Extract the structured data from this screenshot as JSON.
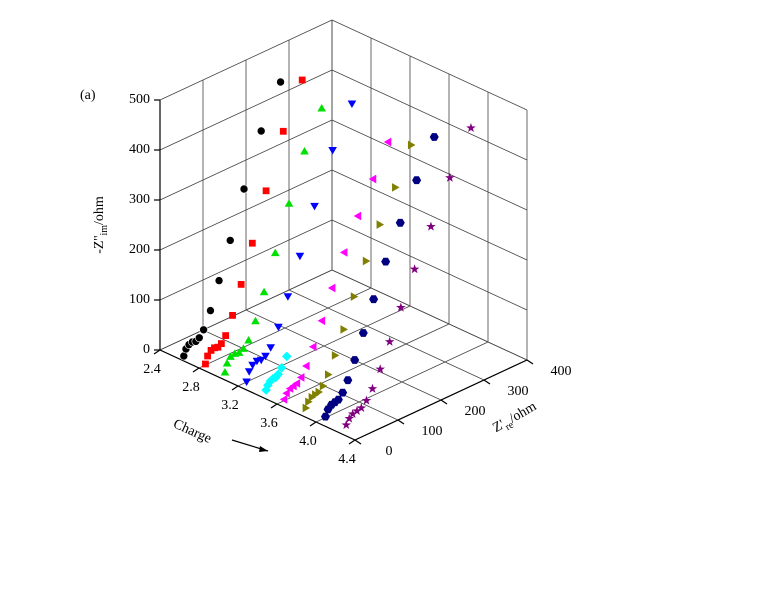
{
  "chart_data": {
    "type": "scatter3d",
    "annotation": "(a)",
    "xlabel": {
      "main": "Z'",
      "sub": "re",
      "unit": "/ohm"
    },
    "ylabel": {
      "main": "-Z''",
      "sub": "im",
      "unit": "/ohm"
    },
    "zlabel": "Charge",
    "xlim": [
      0,
      400
    ],
    "xticks": [
      0,
      100,
      200,
      300,
      400
    ],
    "ylim": [
      0,
      500
    ],
    "yticks": [
      0,
      100,
      200,
      300,
      400,
      500
    ],
    "zlim": [
      2.4,
      4.4
    ],
    "zticks": [
      2.4,
      2.8,
      3.2,
      3.6,
      {
        "value": 4,
        "label": "4.0"
      },
      4.4
    ],
    "grid": true,
    "series": [
      {
        "charge": 2.6,
        "color": "#000000",
        "marker": "circle",
        "x": [
          10,
          15,
          22,
          30,
          38,
          46,
          56,
          72,
          92,
          118,
          150,
          190,
          235
        ],
        "y": [
          2,
          14,
          20,
          22,
          20,
          24,
          36,
          68,
          120,
          190,
          280,
          380,
          460
        ]
      },
      {
        "charge": 2.8,
        "color": "#ff0000",
        "marker": "square",
        "x": [
          15,
          20,
          28,
          36,
          44,
          52,
          62,
          78,
          98,
          124,
          156,
          196,
          240
        ],
        "y": [
          2,
          16,
          24,
          26,
          24,
          28,
          40,
          74,
          128,
          200,
          292,
          395,
          480
        ]
      },
      {
        "charge": 3.0,
        "color": "#00e000",
        "marker": "triangle-up",
        "x": [
          15,
          20,
          28,
          38,
          48,
          58,
          70,
          86,
          106,
          132,
          164,
          200,
          240
        ],
        "y": [
          2,
          18,
          28,
          30,
          28,
          32,
          44,
          76,
          126,
          194,
          280,
          370,
          440
        ]
      },
      {
        "charge": 3.2,
        "color": "#0000ff",
        "marker": "triangle-down",
        "x": [
          20,
          26,
          34,
          44,
          54,
          64,
          76,
          94,
          116,
          144,
          178,
          220,
          265
        ],
        "y": [
          2,
          20,
          30,
          34,
          32,
          36,
          48,
          82,
          134,
          204,
          290,
          385,
          460
        ]
      },
      {
        "charge": 3.4,
        "color": "#00ffff",
        "marker": "diamond",
        "x": [
          20,
          24,
          30,
          36,
          42,
          48,
          56,
          68
        ],
        "y": [
          2,
          10,
          16,
          18,
          18,
          22,
          32,
          50
        ]
      },
      {
        "charge": 3.6,
        "color": "#ff00ff",
        "marker": "triangle-left",
        "x": [
          18,
          24,
          32,
          40,
          48,
          58,
          70,
          86,
          106,
          130,
          158,
          190,
          225,
          260
        ],
        "y": [
          2,
          12,
          18,
          20,
          22,
          30,
          48,
          80,
          124,
          180,
          240,
          300,
          360,
          420
        ]
      },
      {
        "charge": 3.8,
        "color": "#808000",
        "marker": "triangle-right",
        "x": [
          20,
          26,
          34,
          42,
          50,
          60,
          72,
          88,
          108,
          132,
          160,
          192,
          228,
          265
        ],
        "y": [
          2,
          12,
          18,
          20,
          22,
          30,
          48,
          80,
          124,
          180,
          240,
          300,
          360,
          430
        ]
      },
      {
        "charge": 4.0,
        "color": "#000080",
        "marker": "hexagon",
        "x": [
          22,
          28,
          36,
          44,
          52,
          62,
          74,
          90,
          110,
          134,
          162,
          196,
          234,
          275
        ],
        "y": [
          2,
          14,
          20,
          22,
          24,
          34,
          54,
          88,
          134,
          192,
          256,
          320,
          390,
          460
        ]
      },
      {
        "charge": 4.2,
        "color": "#800080",
        "marker": "star",
        "x": [
          25,
          32,
          40,
          50,
          60,
          72,
          86,
          104,
          126,
          152,
          184,
          222,
          266,
          315
        ],
        "y": [
          2,
          12,
          18,
          20,
          22,
          32,
          50,
          82,
          128,
          186,
          250,
          320,
          400,
          480
        ]
      }
    ]
  }
}
